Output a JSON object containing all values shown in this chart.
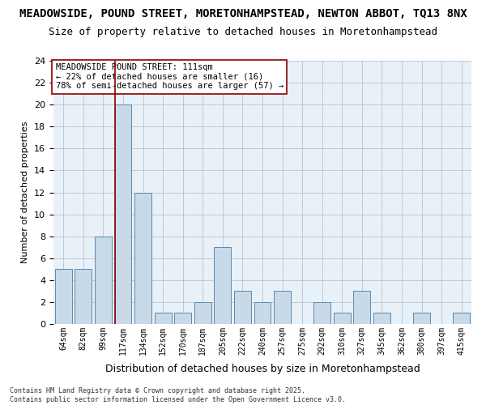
{
  "title_line1": "MEADOWSIDE, POUND STREET, MORETONHAMPSTEAD, NEWTON ABBOT, TQ13 8NX",
  "title_line2": "Size of property relative to detached houses in Moretonhampstead",
  "xlabel": "Distribution of detached houses by size in Moretonhampstead",
  "ylabel": "Number of detached properties",
  "categories": [
    "64sqm",
    "82sqm",
    "99sqm",
    "117sqm",
    "134sqm",
    "152sqm",
    "170sqm",
    "187sqm",
    "205sqm",
    "222sqm",
    "240sqm",
    "257sqm",
    "275sqm",
    "292sqm",
    "310sqm",
    "327sqm",
    "345sqm",
    "362sqm",
    "380sqm",
    "397sqm",
    "415sqm"
  ],
  "values": [
    5,
    5,
    8,
    20,
    12,
    1,
    1,
    2,
    7,
    3,
    2,
    3,
    0,
    2,
    1,
    3,
    1,
    0,
    1,
    0,
    1
  ],
  "bar_color": "#c8d9e8",
  "bar_edge_color": "#5a8ab0",
  "vline_index": 3,
  "vline_color": "#8b0000",
  "annotation_text": "MEADOWSIDE POUND STREET: 111sqm\n← 22% of detached houses are smaller (16)\n78% of semi-detached houses are larger (57) →",
  "annotation_box_color": "#ffffff",
  "annotation_box_edge_color": "#8b0000",
  "ylim": [
    0,
    24
  ],
  "yticks": [
    0,
    2,
    4,
    6,
    8,
    10,
    12,
    14,
    16,
    18,
    20,
    22,
    24
  ],
  "background_color": "#e8f0f8",
  "footer_text": "Contains HM Land Registry data © Crown copyright and database right 2025.\nContains public sector information licensed under the Open Government Licence v3.0.",
  "title_fontsize": 10,
  "subtitle_fontsize": 9
}
